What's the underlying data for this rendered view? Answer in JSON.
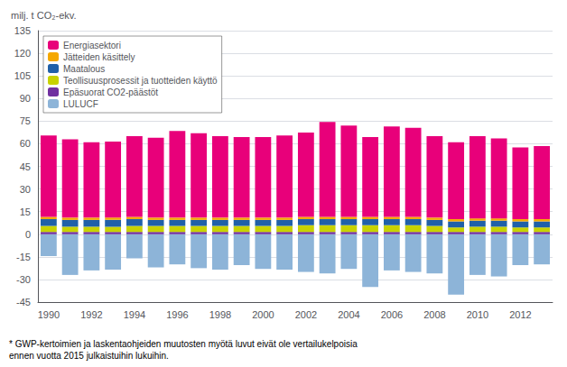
{
  "chart_data": {
    "type": "bar",
    "stacked": true,
    "ylabel": "milj. t CO₂-ekv.",
    "footnote": "* GWP-kertoimien ja laskentaohjeiden muutosten myötä luvut eivät ole vertailukelpoisia\nennen vuotta 2015 julkaistuihin lukuihin.",
    "categories": [
      "1990",
      null,
      "1992",
      null,
      "1994",
      null,
      "1996",
      null,
      "1998",
      null,
      "2000",
      null,
      "2002",
      null,
      "2004",
      null,
      "2006",
      null,
      "2008",
      null,
      "2010",
      null,
      "2012",
      null
    ],
    "series": [
      {
        "name": "Energiasektori",
        "color": "#E8007A",
        "values": [
          54.0,
          52.0,
          50.0,
          50.5,
          53.5,
          53.0,
          57.5,
          56.0,
          54.0,
          53.5,
          53.5,
          54.5,
          56.0,
          63.0,
          60.5,
          53.0,
          60.0,
          59.0,
          54.0,
          51.0,
          54.5,
          53.0,
          47.5,
          48.5
        ]
      },
      {
        "name": "Jätteiden käsittely",
        "color": "#F5A800",
        "values": [
          1.5,
          1.5,
          1.5,
          1.5,
          1.5,
          1.5,
          1.5,
          1.5,
          1.5,
          1.5,
          1.5,
          1.5,
          1.5,
          1.5,
          1.5,
          1.5,
          1.5,
          1.5,
          1.5,
          1.5,
          1.5,
          1.5,
          1.5,
          1.5
        ]
      },
      {
        "name": "Maatalous",
        "color": "#2060A8",
        "values": [
          4.5,
          4.5,
          4.5,
          4.5,
          4.5,
          4.0,
          4.0,
          4.0,
          4.0,
          4.0,
          4.0,
          4.0,
          4.0,
          4.0,
          4.0,
          4.0,
          4.0,
          4.0,
          4.0,
          4.0,
          4.0,
          4.0,
          4.0,
          4.0
        ]
      },
      {
        "name": "Teollisuusprosessit ja tuotteiden käyttö",
        "color": "#C8D200",
        "values": [
          4.0,
          3.5,
          3.5,
          3.5,
          4.0,
          4.0,
          4.0,
          4.0,
          4.0,
          4.0,
          4.0,
          4.0,
          4.5,
          4.5,
          4.5,
          4.5,
          4.5,
          4.5,
          4.0,
          3.0,
          3.5,
          3.5,
          3.0,
          3.0
        ]
      },
      {
        "name": "Epäsuorat CO2-päästöt",
        "color": "#7030A0",
        "values": [
          1.5,
          1.5,
          1.5,
          1.5,
          1.5,
          1.5,
          1.5,
          1.5,
          1.5,
          1.5,
          1.5,
          1.5,
          1.5,
          1.5,
          1.5,
          1.5,
          1.5,
          1.5,
          1.5,
          1.5,
          1.5,
          1.5,
          1.5,
          1.5
        ]
      },
      {
        "name": "LULUCF",
        "color": "#8DB4D8",
        "values": [
          -14.5,
          -27.0,
          -24.0,
          -23.5,
          -16.0,
          -22.0,
          -20.0,
          -22.5,
          -23.5,
          -20.5,
          -23.0,
          -23.5,
          -25.0,
          -26.0,
          -23.0,
          -35.0,
          -24.0,
          -25.0,
          -26.0,
          -40.0,
          -27.0,
          -28.0,
          -20.5,
          -20.0
        ]
      }
    ],
    "ylim": [
      -45,
      135
    ],
    "yticks": [
      -45,
      -30,
      -15,
      0,
      15,
      30,
      45,
      60,
      75,
      90,
      105,
      120,
      135
    ],
    "grid": true,
    "legend": "upper left"
  }
}
